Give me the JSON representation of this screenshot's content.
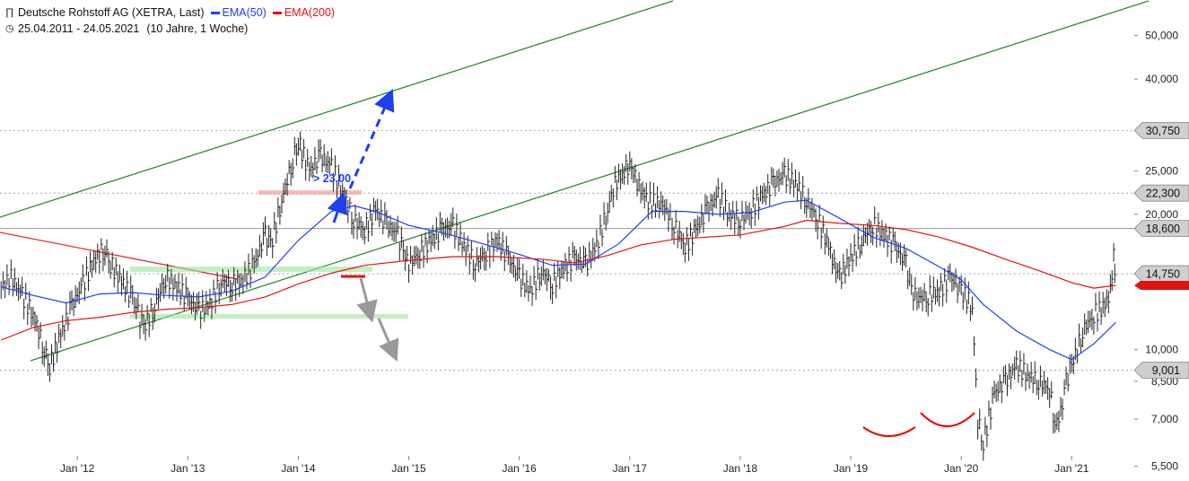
{
  "header": {
    "title": "Deutsche Rohstoff AG (XETRA, Last)",
    "ema50_label": "EMA(50)",
    "ema200_label": "EMA(200)",
    "date_range": "25.04.2011 - 24.05.2021",
    "interval": "(10 Jahre, 1 Woche)",
    "ema50_color": "#1f3ff0",
    "ema200_color": "#e11111"
  },
  "chart_data": {
    "type": "line",
    "scale": "log",
    "ylim": [
      5.1,
      60
    ],
    "xlim": [
      2011.3,
      2021.55
    ],
    "grid": false,
    "y_ticks": [
      {
        "v": 50,
        "label": "50,000"
      },
      {
        "v": 40,
        "label": "40,000"
      },
      {
        "v": 25,
        "label": "25,000"
      },
      {
        "v": 20,
        "label": "20,000"
      },
      {
        "v": 10,
        "label": "10,000"
      },
      {
        "v": 8.5,
        "label": "8,500"
      },
      {
        "v": 7,
        "label": "7,000"
      },
      {
        "v": 5.5,
        "label": "5,500"
      }
    ],
    "x_ticks": [
      {
        "v": 2012.0,
        "label": "Jan '12"
      },
      {
        "v": 2013.0,
        "label": "Jan '13"
      },
      {
        "v": 2014.0,
        "label": "Jan '14"
      },
      {
        "v": 2015.0,
        "label": "Jan '15"
      },
      {
        "v": 2016.0,
        "label": "Jan '16"
      },
      {
        "v": 2017.0,
        "label": "Jan '17"
      },
      {
        "v": 2018.0,
        "label": "Jan '18"
      },
      {
        "v": 2019.0,
        "label": "Jan '19"
      },
      {
        "v": 2020.0,
        "label": "Jan '20"
      },
      {
        "v": 2021.0,
        "label": "Jan '21"
      }
    ],
    "price_tags": [
      {
        "v": 30.75,
        "label": "30,750",
        "fill": "#cfcfcf"
      },
      {
        "v": 22.3,
        "label": "22,300",
        "fill": "#cfcfcf"
      },
      {
        "v": 18.6,
        "label": "18,600",
        "fill": "#cfcfcf"
      },
      {
        "v": 14.75,
        "label": "14,750",
        "fill": "#cfcfcf"
      },
      {
        "v": 9.001,
        "label": "9,001",
        "fill": "#cfcfcf"
      }
    ],
    "horizontal_lines": [
      {
        "v": 30.75,
        "style": "dotted"
      },
      {
        "v": 22.3,
        "style": "dotted"
      },
      {
        "v": 18.6,
        "style": "solid"
      },
      {
        "v": 14.75,
        "style": "dotted"
      },
      {
        "v": 9.001,
        "style": "dotted"
      }
    ],
    "annotation": "> 23,00",
    "series": [
      {
        "name": "Deutsche Rohstoff AG",
        "color": "#222222",
        "points": [
          [
            2011.31,
            13.8
          ],
          [
            2011.4,
            14.5
          ],
          [
            2011.5,
            13.2
          ],
          [
            2011.6,
            12.0
          ],
          [
            2011.7,
            10.0
          ],
          [
            2011.75,
            9.2
          ],
          [
            2011.85,
            10.8
          ],
          [
            2011.95,
            12.5
          ],
          [
            2012.05,
            14.0
          ],
          [
            2012.15,
            15.8
          ],
          [
            2012.25,
            16.8
          ],
          [
            2012.3,
            15.5
          ],
          [
            2012.4,
            14.2
          ],
          [
            2012.5,
            13.0
          ],
          [
            2012.55,
            12.0
          ],
          [
            2012.6,
            11.2
          ],
          [
            2012.7,
            12.5
          ],
          [
            2012.8,
            14.5
          ],
          [
            2012.9,
            13.8
          ],
          [
            2013.0,
            13.0
          ],
          [
            2013.1,
            12.2
          ],
          [
            2013.2,
            12.6
          ],
          [
            2013.3,
            14.2
          ],
          [
            2013.4,
            14.0
          ],
          [
            2013.5,
            14.3
          ],
          [
            2013.6,
            15.5
          ],
          [
            2013.7,
            18.0
          ],
          [
            2013.75,
            17.0
          ],
          [
            2013.85,
            21.5
          ],
          [
            2013.95,
            26.5
          ],
          [
            2014.0,
            29.0
          ],
          [
            2014.1,
            25.0
          ],
          [
            2014.2,
            27.0
          ],
          [
            2014.3,
            25.5
          ],
          [
            2014.4,
            22.5
          ],
          [
            2014.5,
            19.5
          ],
          [
            2014.6,
            18.5
          ],
          [
            2014.7,
            20.5
          ],
          [
            2014.8,
            19.0
          ],
          [
            2014.9,
            18.0
          ],
          [
            2014.95,
            16.5
          ],
          [
            2015.0,
            15.5
          ],
          [
            2015.1,
            16.5
          ],
          [
            2015.2,
            17.5
          ],
          [
            2015.3,
            18.5
          ],
          [
            2015.4,
            18.8
          ],
          [
            2015.5,
            17.0
          ],
          [
            2015.6,
            15.5
          ],
          [
            2015.7,
            16.5
          ],
          [
            2015.8,
            17.5
          ],
          [
            2015.9,
            16.0
          ],
          [
            2016.0,
            14.5
          ],
          [
            2016.1,
            13.5
          ],
          [
            2016.2,
            15.0
          ],
          [
            2016.3,
            14.0
          ],
          [
            2016.4,
            15.2
          ],
          [
            2016.5,
            16.0
          ],
          [
            2016.6,
            15.5
          ],
          [
            2016.7,
            17.0
          ],
          [
            2016.8,
            20.5
          ],
          [
            2016.85,
            23.0
          ],
          [
            2016.95,
            25.0
          ],
          [
            2017.0,
            26.0
          ],
          [
            2017.05,
            24.0
          ],
          [
            2017.15,
            21.5
          ],
          [
            2017.3,
            21.0
          ],
          [
            2017.4,
            19.0
          ],
          [
            2017.5,
            17.0
          ],
          [
            2017.6,
            18.5
          ],
          [
            2017.7,
            20.5
          ],
          [
            2017.8,
            22.0
          ],
          [
            2017.9,
            20.0
          ],
          [
            2018.0,
            19.5
          ],
          [
            2018.1,
            20.5
          ],
          [
            2018.2,
            22.0
          ],
          [
            2018.3,
            23.5
          ],
          [
            2018.4,
            24.5
          ],
          [
            2018.5,
            23.5
          ],
          [
            2018.6,
            21.5
          ],
          [
            2018.7,
            19.5
          ],
          [
            2018.8,
            17.0
          ],
          [
            2018.85,
            15.5
          ],
          [
            2018.9,
            14.5
          ],
          [
            2019.0,
            16.0
          ],
          [
            2019.1,
            17.5
          ],
          [
            2019.2,
            19.0
          ],
          [
            2019.3,
            18.0
          ],
          [
            2019.4,
            17.0
          ],
          [
            2019.5,
            15.5
          ],
          [
            2019.55,
            13.5
          ],
          [
            2019.6,
            13.0
          ],
          [
            2019.7,
            13.2
          ],
          [
            2019.8,
            13.5
          ],
          [
            2019.9,
            14.5
          ],
          [
            2019.95,
            14.0
          ],
          [
            2020.0,
            13.5
          ],
          [
            2020.1,
            12.5
          ],
          [
            2020.15,
            7.0
          ],
          [
            2020.2,
            6.2
          ],
          [
            2020.3,
            8.0
          ],
          [
            2020.4,
            8.5
          ],
          [
            2020.5,
            9.2
          ],
          [
            2020.6,
            8.8
          ],
          [
            2020.7,
            8.5
          ],
          [
            2020.8,
            8.2
          ],
          [
            2020.85,
            6.8
          ],
          [
            2020.9,
            7.2
          ],
          [
            2020.95,
            8.5
          ],
          [
            2021.0,
            9.2
          ],
          [
            2021.1,
            11.0
          ],
          [
            2021.2,
            12.0
          ],
          [
            2021.3,
            12.5
          ],
          [
            2021.35,
            13.5
          ],
          [
            2021.38,
            16.0
          ],
          [
            2021.4,
            14.75
          ]
        ]
      },
      {
        "name": "EMA(50)",
        "color": "#1f3ff0",
        "points": [
          [
            2011.31,
            13.8
          ],
          [
            2011.6,
            13.2
          ],
          [
            2011.9,
            12.7
          ],
          [
            2012.2,
            13.3
          ],
          [
            2012.5,
            13.4
          ],
          [
            2012.8,
            13.2
          ],
          [
            2013.1,
            13.1
          ],
          [
            2013.4,
            13.5
          ],
          [
            2013.7,
            14.5
          ],
          [
            2014.0,
            17.5
          ],
          [
            2014.3,
            20.3
          ],
          [
            2014.5,
            20.9
          ],
          [
            2014.7,
            20.3
          ],
          [
            2015.0,
            18.9
          ],
          [
            2015.3,
            18.2
          ],
          [
            2015.6,
            17.4
          ],
          [
            2016.0,
            16.3
          ],
          [
            2016.3,
            15.4
          ],
          [
            2016.6,
            15.5
          ],
          [
            2016.9,
            17.2
          ],
          [
            2017.2,
            20.3
          ],
          [
            2017.5,
            20.3
          ],
          [
            2017.8,
            20.0
          ],
          [
            2018.1,
            20.2
          ],
          [
            2018.4,
            21.3
          ],
          [
            2018.6,
            21.5
          ],
          [
            2018.9,
            19.6
          ],
          [
            2019.2,
            17.8
          ],
          [
            2019.5,
            16.8
          ],
          [
            2019.8,
            15.3
          ],
          [
            2020.0,
            14.3
          ],
          [
            2020.2,
            12.6
          ],
          [
            2020.5,
            11.0
          ],
          [
            2020.8,
            10.0
          ],
          [
            2021.0,
            9.5
          ],
          [
            2021.2,
            10.3
          ],
          [
            2021.4,
            11.5
          ]
        ]
      },
      {
        "name": "EMA(200)",
        "color": "#e11111",
        "points": [
          [
            2011.31,
            10.5
          ],
          [
            2011.6,
            11.2
          ],
          [
            2011.9,
            11.6
          ],
          [
            2012.2,
            11.8
          ],
          [
            2012.5,
            12.1
          ],
          [
            2012.8,
            12.3
          ],
          [
            2013.1,
            12.4
          ],
          [
            2013.4,
            12.6
          ],
          [
            2013.7,
            13.1
          ],
          [
            2014.0,
            14.0
          ],
          [
            2014.3,
            14.8
          ],
          [
            2014.6,
            15.4
          ],
          [
            2015.0,
            15.8
          ],
          [
            2015.4,
            16.1
          ],
          [
            2015.8,
            16.1
          ],
          [
            2016.2,
            15.9
          ],
          [
            2016.5,
            15.6
          ],
          [
            2016.8,
            16.2
          ],
          [
            2017.1,
            17.1
          ],
          [
            2017.4,
            17.6
          ],
          [
            2017.7,
            17.8
          ],
          [
            2018.0,
            18.0
          ],
          [
            2018.4,
            18.8
          ],
          [
            2018.6,
            19.4
          ],
          [
            2018.9,
            19.1
          ],
          [
            2019.2,
            18.9
          ],
          [
            2019.5,
            18.5
          ],
          [
            2019.8,
            17.8
          ],
          [
            2020.1,
            16.9
          ],
          [
            2020.4,
            15.9
          ],
          [
            2020.7,
            15.0
          ],
          [
            2021.0,
            14.1
          ],
          [
            2021.2,
            13.7
          ],
          [
            2021.4,
            13.9
          ]
        ]
      }
    ]
  }
}
